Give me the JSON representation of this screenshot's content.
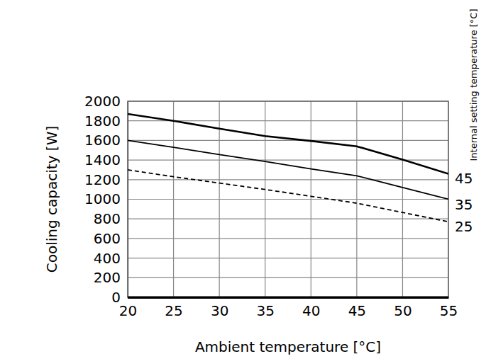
{
  "chart_data": {
    "type": "line",
    "x_label": "Ambient temperature [°C]",
    "y_label": "Cooling capacity [W]",
    "legend_title": "Internal setting temperature [°C]",
    "x": [
      20,
      25,
      30,
      35,
      40,
      45,
      50,
      55
    ],
    "series": [
      {
        "name": "45",
        "color": "#000000",
        "line_style": "solid",
        "values": [
          1870,
          1800,
          1720,
          1645,
          1595,
          1540,
          1405,
          1260
        ]
      },
      {
        "name": "35",
        "color": "#000000",
        "line_style": "solid",
        "values": [
          1600,
          1530,
          1455,
          1385,
          1310,
          1240,
          1120,
          1000
        ]
      },
      {
        "name": "25",
        "color": "#000000",
        "line_style": "dashed",
        "values": [
          1300,
          1230,
          1165,
          1100,
          1030,
          960,
          865,
          770
        ]
      }
    ],
    "xlim": [
      20,
      55
    ],
    "xticks": [
      20,
      25,
      30,
      35,
      40,
      45,
      50,
      55
    ],
    "ylim": [
      0,
      2000
    ],
    "yticks": [
      0,
      200,
      400,
      600,
      800,
      1000,
      1200,
      1400,
      1600,
      1800,
      2000
    ],
    "grid": true
  }
}
